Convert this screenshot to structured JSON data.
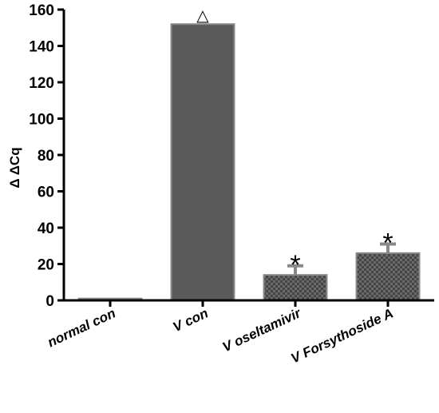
{
  "chart_data": {
    "type": "bar",
    "title": "",
    "xlabel": "",
    "ylabel": "Δ ΔCq",
    "ylim": [
      0,
      160
    ],
    "yticks": [
      0,
      20,
      40,
      60,
      80,
      100,
      120,
      140,
      160
    ],
    "yticks_text": [
      "0",
      "20",
      "40",
      "60",
      "80",
      "100",
      "120",
      "140",
      "160"
    ],
    "grid": false,
    "categories": [
      "normal con",
      "V con",
      "V oseltamivir",
      "V Forsythoside A"
    ],
    "values": [
      1,
      152,
      14,
      26
    ],
    "errors": [
      0,
      0,
      5,
      5
    ],
    "annotations": [
      "",
      "△",
      "*",
      "*"
    ],
    "bar_fills": [
      "solid",
      "solid",
      "checkered",
      "checkered"
    ],
    "colors": {
      "bar": "#5a5a5a",
      "bar_edge": "#888888",
      "axis": "#000000"
    }
  }
}
